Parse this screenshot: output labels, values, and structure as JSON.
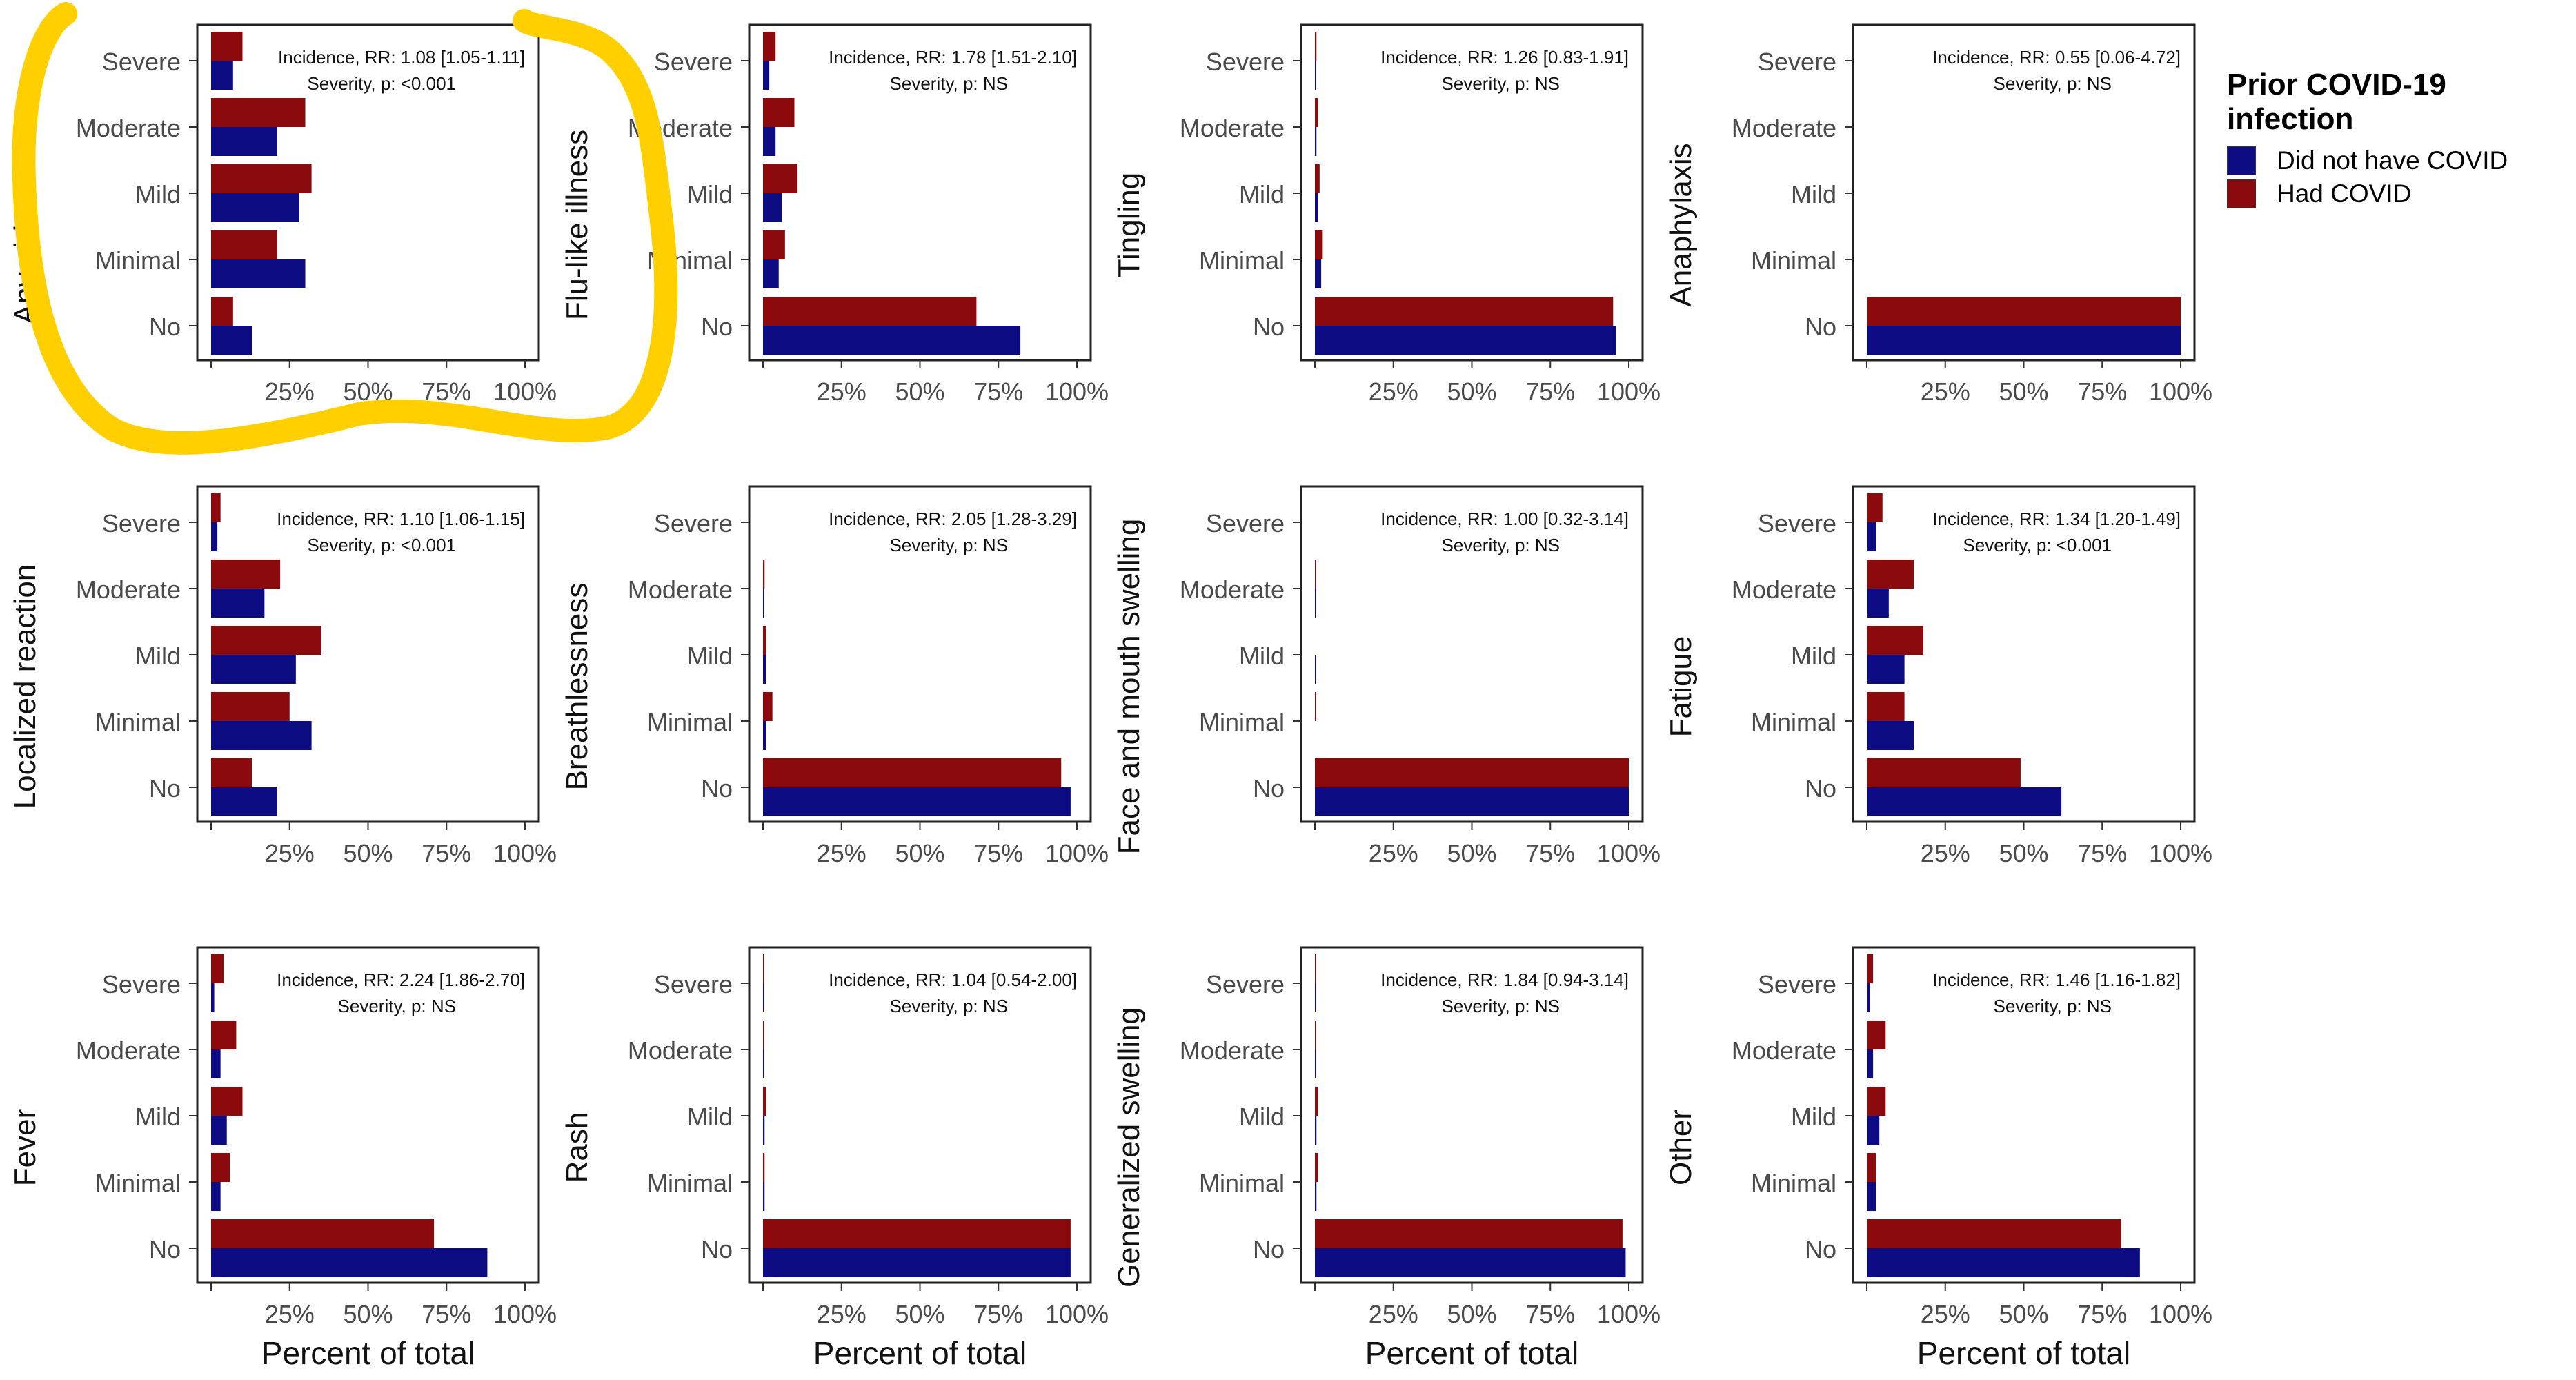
{
  "chart_data": {
    "type": "bar",
    "orientation": "horizontal",
    "categories": [
      "No",
      "Minimal",
      "Mild",
      "Moderate",
      "Severe"
    ],
    "x_ticks": [
      "25%",
      "50%",
      "75%",
      "100%"
    ],
    "xlim": [
      0,
      100
    ],
    "xlabel": "Percent of total",
    "legend": {
      "title": "Prior COVID-19 infection",
      "position": "top-right",
      "items": [
        {
          "label": "Did not have COVID",
          "color": "#0c0b82"
        },
        {
          "label": "Had COVID",
          "color": "#8b0a0d"
        }
      ]
    },
    "grid": false,
    "panels": [
      {
        "title": "Any side effect",
        "incidence": "Incidence, RR: 1.08 [1.05-1.11]",
        "severity": "Severity, p: <0.001",
        "series": [
          {
            "name": "Did not have COVID",
            "values": [
              13,
              30,
              28,
              21,
              7
            ]
          },
          {
            "name": "Had COVID",
            "values": [
              7,
              21,
              32,
              30,
              10
            ]
          }
        ]
      },
      {
        "title": "Flu-like illness",
        "incidence": "Incidence, RR: 1.78 [1.51-2.10]",
        "severity": "Severity, p: NS",
        "series": [
          {
            "name": "Did not have COVID",
            "values": [
              82,
              5,
              6,
              4,
              2
            ]
          },
          {
            "name": "Had COVID",
            "values": [
              68,
              7,
              11,
              10,
              4
            ]
          }
        ]
      },
      {
        "title": "Tingling",
        "incidence": "Incidence, RR: 1.26 [0.83-1.91]",
        "severity": "Severity, p: NS",
        "series": [
          {
            "name": "Did not have COVID",
            "values": [
              96,
              2,
              1,
              0.5,
              0.2
            ]
          },
          {
            "name": "Had COVID",
            "values": [
              95,
              2.5,
              1.5,
              1,
              0.5
            ]
          }
        ]
      },
      {
        "title": "Anaphylaxis",
        "incidence": "Incidence, RR: 0.55 [0.06-4.72]",
        "severity": "Severity, p: NS",
        "series": [
          {
            "name": "Did not have COVID",
            "values": [
              100,
              0,
              0,
              0,
              0
            ]
          },
          {
            "name": "Had COVID",
            "values": [
              100,
              0,
              0,
              0,
              0
            ]
          }
        ]
      },
      {
        "title": "Localized reaction",
        "incidence": "Incidence, RR: 1.10 [1.06-1.15]",
        "severity": "Severity, p: <0.001",
        "series": [
          {
            "name": "Did not have COVID",
            "values": [
              21,
              32,
              27,
              17,
              2
            ]
          },
          {
            "name": "Had COVID",
            "values": [
              13,
              25,
              35,
              22,
              3
            ]
          }
        ]
      },
      {
        "title": "Breathlessness",
        "incidence": "Incidence, RR: 2.05 [1.28-3.29]",
        "severity": "Severity, p: NS",
        "series": [
          {
            "name": "Did not have COVID",
            "values": [
              98,
              1,
              1,
              0.2,
              0
            ]
          },
          {
            "name": "Had COVID",
            "values": [
              95,
              3,
              1,
              0.5,
              0
            ]
          }
        ]
      },
      {
        "title": "Face and mouth swelling",
        "incidence": "Incidence, RR: 1.00 [0.32-3.14]",
        "severity": "Severity, p: NS",
        "series": [
          {
            "name": "Did not have COVID",
            "values": [
              100,
              0,
              0.3,
              0.2,
              0
            ]
          },
          {
            "name": "Had COVID",
            "values": [
              100,
              0.3,
              0,
              0.2,
              0
            ]
          }
        ]
      },
      {
        "title": "Fatigue",
        "incidence": "Incidence, RR: 1.34 [1.20-1.49]",
        "severity": "Severity, p: <0.001",
        "series": [
          {
            "name": "Did not have COVID",
            "values": [
              62,
              15,
              12,
              7,
              3
            ]
          },
          {
            "name": "Had COVID",
            "values": [
              49,
              12,
              18,
              15,
              5
            ]
          }
        ]
      },
      {
        "title": "Fever",
        "incidence": "Incidence, RR: 2.24 [1.86-2.70]",
        "severity": "Severity, p: NS",
        "series": [
          {
            "name": "Did not have COVID",
            "values": [
              88,
              3,
              5,
              3,
              1
            ]
          },
          {
            "name": "Had COVID",
            "values": [
              71,
              6,
              10,
              8,
              4
            ]
          }
        ]
      },
      {
        "title": "Rash",
        "incidence": "Incidence, RR: 1.04 [0.54-2.00]",
        "severity": "Severity, p: NS",
        "series": [
          {
            "name": "Did not have COVID",
            "values": [
              98,
              0.5,
              0.5,
              0.3,
              0.2
            ]
          },
          {
            "name": "Had COVID",
            "values": [
              98,
              0.5,
              1,
              0.4,
              0.2
            ]
          }
        ]
      },
      {
        "title": "Generalized swelling",
        "incidence": "Incidence, RR: 1.84 [0.94-3.14]",
        "severity": "Severity, p: NS",
        "series": [
          {
            "name": "Did not have COVID",
            "values": [
              99,
              0.5,
              0.5,
              0.3,
              0.1
            ]
          },
          {
            "name": "Had COVID",
            "values": [
              98,
              1,
              1,
              0.3,
              0.1
            ]
          }
        ]
      },
      {
        "title": "Other",
        "incidence": "Incidence, RR: 1.46 [1.16-1.82]",
        "severity": "Severity, p: NS",
        "series": [
          {
            "name": "Did not have COVID",
            "values": [
              87,
              3,
              4,
              2,
              1
            ]
          },
          {
            "name": "Had COVID",
            "values": [
              81,
              3,
              6,
              6,
              2
            ]
          }
        ]
      }
    ]
  }
}
